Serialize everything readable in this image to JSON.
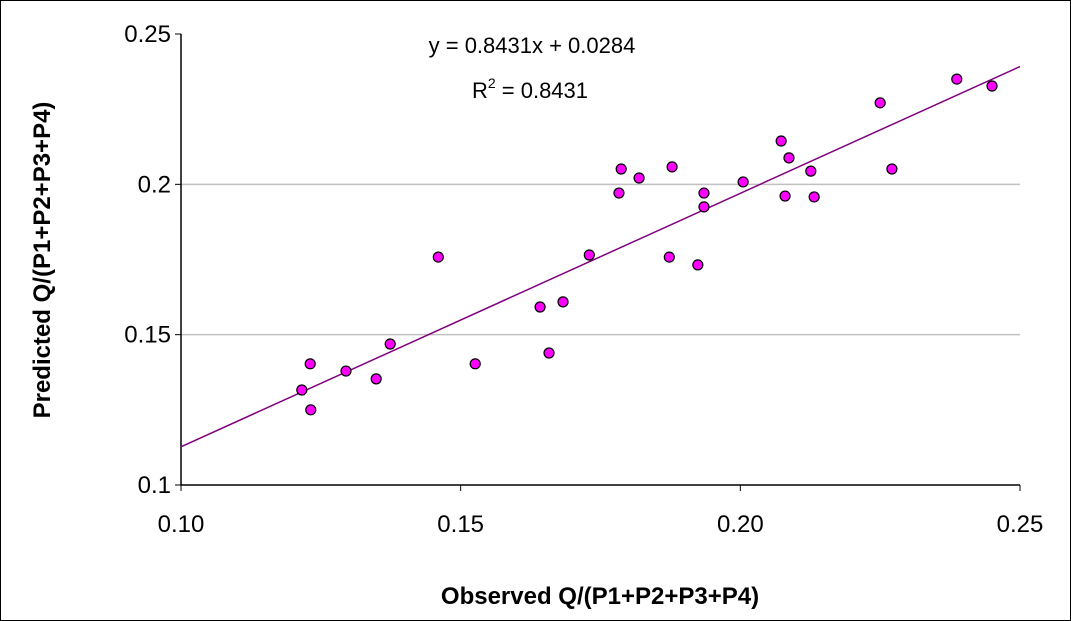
{
  "chart_data": {
    "type": "scatter",
    "x_label": "Observed Q/(P1+P2+P3+P4)",
    "y_label": "Predicted Q/(P1+P2+P3+P4)",
    "xlim": [
      0.1,
      0.25
    ],
    "ylim": [
      0.1,
      0.25
    ],
    "xticks": [
      {
        "value": 0.1,
        "label": "0.10"
      },
      0.15,
      {
        "value": 0.2,
        "label": "0.20"
      },
      0.25
    ],
    "yticks": [
      0.1,
      0.15,
      0.2,
      0.25
    ],
    "grid": true,
    "series": [
      {
        "color": "#ff00ff",
        "x": [
          0.1216,
          0.1231,
          0.1232,
          0.1295,
          0.1349,
          0.1374,
          0.146,
          0.1526,
          0.1642,
          0.1658,
          0.1683,
          0.173,
          0.1783,
          0.1787,
          0.1819,
          0.1873,
          0.1878,
          0.1924,
          0.1935,
          0.1935,
          0.2005,
          0.2073,
          0.208,
          0.2087,
          0.2126,
          0.2132,
          0.225,
          0.2271,
          0.2387,
          0.245
        ],
        "values": [
          0.1316,
          0.1403,
          0.125,
          0.1379,
          0.1353,
          0.1469,
          0.1758,
          0.1403,
          0.1592,
          0.1439,
          0.1609,
          0.1765,
          0.1971,
          0.2051,
          0.2021,
          0.1758,
          0.2058,
          0.1732,
          0.1971,
          0.1925,
          0.2008,
          0.2144,
          0.1961,
          0.2088,
          0.2044,
          0.1958,
          0.2271,
          0.2051,
          0.235,
          0.2327
        ]
      }
    ],
    "trendline": {
      "slope": 0.8431,
      "intercept": 0.0284,
      "color": "#800080",
      "label": "y = 0.8431x + 0.0284"
    },
    "r_squared_label": {
      "base": "R",
      "sup": "2",
      "rest": " = 0.8431"
    }
  }
}
